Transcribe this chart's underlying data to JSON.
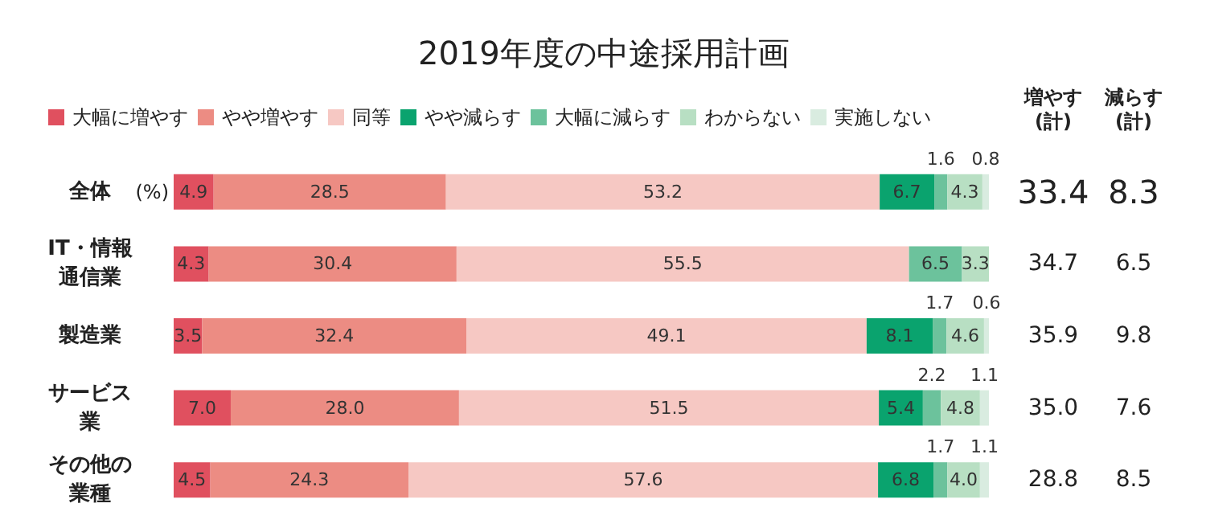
{
  "chart_data": {
    "type": "bar",
    "orientation": "horizontal",
    "stacked": true,
    "title": "2019年度の中途採用計画",
    "categories": [
      "全体",
      "IT・情報通信業",
      "製造業",
      "サービス業",
      "その他の業種"
    ],
    "series": [
      {
        "name": "大幅に増やす",
        "color": "#e0505f",
        "values": [
          4.9,
          4.3,
          3.5,
          7.0,
          4.5
        ],
        "value_labels": [
          "4.9",
          "4.3",
          "3.5",
          "7.0",
          "4.5"
        ]
      },
      {
        "name": "やや増やす",
        "color": "#ec8c83",
        "values": [
          28.5,
          30.4,
          32.4,
          28.0,
          24.3
        ],
        "value_labels": [
          "28.5",
          "30.4",
          "32.4",
          "28.0",
          "24.3"
        ]
      },
      {
        "name": "同等",
        "color": "#f6c8c3",
        "values": [
          53.2,
          55.5,
          49.1,
          51.5,
          57.6
        ],
        "value_labels": [
          "53.2",
          "55.5",
          "49.1",
          "51.5",
          "57.6"
        ]
      },
      {
        "name": "やや減らす",
        "color": "#0aa36e",
        "values": [
          6.7,
          null,
          8.1,
          5.4,
          6.8
        ],
        "value_labels": [
          "6.7",
          null,
          "8.1",
          "5.4",
          "6.8"
        ]
      },
      {
        "name": "大幅に減らす",
        "color": "#6cc29c",
        "values": [
          1.6,
          6.5,
          1.7,
          2.2,
          1.7
        ],
        "value_labels": [
          "1.6",
          "6.5",
          "1.7",
          "2.2",
          "1.7"
        ]
      },
      {
        "name": "わからない",
        "color": "#b8dfc3",
        "values": [
          4.3,
          3.3,
          4.6,
          4.8,
          4.0
        ],
        "value_labels": [
          "4.3",
          "3.3",
          "4.6",
          "4.8",
          "4.0"
        ]
      },
      {
        "name": "実施しない",
        "color": "#d9ece0",
        "values": [
          0.8,
          null,
          0.6,
          1.1,
          1.1
        ],
        "value_labels": [
          "0.8",
          null,
          "0.6",
          "1.1",
          "1.1"
        ]
      }
    ],
    "xlim": [
      0,
      100
    ],
    "tick_labels": "y",
    "legend": "top",
    "annotations": [
      "(%)",
      "増やす\n(計)",
      "減らす\n(計)",
      "33.4",
      "8.3",
      "34.7",
      "6.5",
      "35.9",
      "9.8",
      "35.0",
      "7.6",
      "28.8",
      "8.5"
    ]
  }
}
